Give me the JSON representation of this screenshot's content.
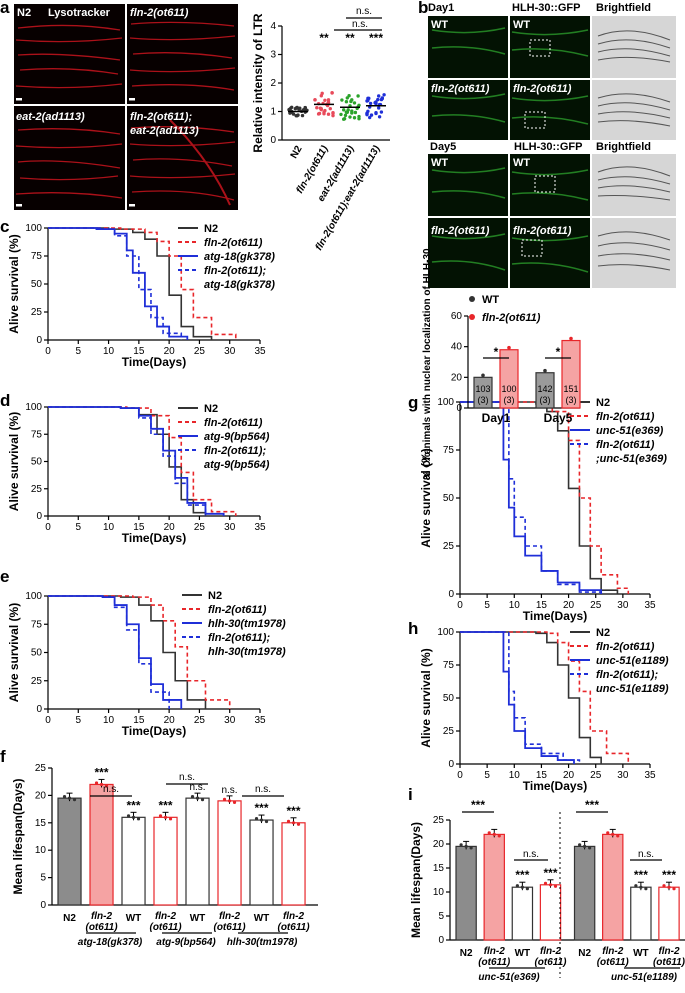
{
  "panel_letters": [
    "a",
    "b",
    "c",
    "d",
    "e",
    "f",
    "g",
    "h",
    "i"
  ],
  "colors": {
    "n2": "#333333",
    "fln2": "#e8262a",
    "mut": "#1f2fd8",
    "double": "#1f2fd8",
    "gray_bar": "#8c8c8c",
    "pink_bar": "#f5a3a3"
  },
  "panel_a": {
    "labels": [
      "N2",
      "Lysotracker",
      "fln-2(ot611)",
      "eat-2(ad1113)",
      "fln-2(ot611);",
      "eat-2(ad1113)"
    ]
  },
  "panel_b": {
    "day1": "Day1",
    "day5": "Day5",
    "col_gfp": "HLH-30::GFP",
    "col_bf": "Brightfield",
    "wt": "WT",
    "fln": "fln-2(ot611)"
  },
  "chart_data": [
    {
      "id": "a",
      "type": "scatter",
      "ylabel": "Relative intensity of LTR",
      "ylim": [
        0,
        4
      ],
      "yticks": [
        "0",
        "1",
        "2",
        "3",
        "4"
      ],
      "categories": [
        "N2",
        "fln-2(ot611)",
        "eat-2(ad1113)",
        "fln-2(ot611);eat-2(ad1113)"
      ],
      "means": [
        1.0,
        1.25,
        1.15,
        1.2
      ],
      "sig": [
        "",
        "**",
        "**",
        "***"
      ],
      "bracket": [
        "n.s.",
        "n.s."
      ]
    },
    {
      "id": "b_bar",
      "type": "bar",
      "ylabel": "% Of animals with nuclear localization of HLH-30",
      "ylim": [
        0,
        60
      ],
      "yticks": [
        "0",
        "20",
        "40",
        "60"
      ],
      "categories": [
        "Day1",
        "Day5"
      ],
      "legend": [
        "WT",
        "fln-2(ot611)"
      ],
      "series": [
        {
          "name": "WT",
          "values": [
            20,
            23
          ],
          "n": [
            "103\n(3)",
            "142\n(3)"
          ]
        },
        {
          "name": "fln-2(ot611)",
          "values": [
            38,
            44
          ],
          "n": [
            "100\n(3)",
            "151\n(3)"
          ]
        }
      ],
      "sig": [
        "*",
        "*"
      ]
    },
    {
      "id": "c",
      "type": "line",
      "xlabel": "Time(Days)",
      "ylabel": "Alive survival (%)",
      "xlim": [
        0,
        35
      ],
      "ylim": [
        0,
        100
      ],
      "legend": [
        "N2",
        "fln-2(ot611)",
        "atg-18(gk378)",
        "fln-2(ot611);",
        "atg-18(gk378)"
      ],
      "series": [
        {
          "name": "N2",
          "points": [
            [
              0,
              100
            ],
            [
              10,
              99
            ],
            [
              14,
              96
            ],
            [
              16,
              90
            ],
            [
              18,
              75
            ],
            [
              20,
              40
            ],
            [
              22,
              12
            ],
            [
              24,
              3
            ],
            [
              27,
              0
            ]
          ]
        },
        {
          "name": "fln-2(ot611)",
          "points": [
            [
              0,
              100
            ],
            [
              12,
              99
            ],
            [
              16,
              96
            ],
            [
              18,
              88
            ],
            [
              20,
              75
            ],
            [
              22,
              45
            ],
            [
              24,
              20
            ],
            [
              27,
              5
            ],
            [
              31,
              0
            ]
          ]
        },
        {
          "name": "atg-18(gk378)",
          "points": [
            [
              0,
              100
            ],
            [
              8,
              99
            ],
            [
              11,
              95
            ],
            [
              13,
              80
            ],
            [
              14,
              60
            ],
            [
              16,
              30
            ],
            [
              18,
              12
            ],
            [
              20,
              3
            ],
            [
              23,
              0
            ]
          ]
        },
        {
          "name": "fln-2(ot611); atg-18(gk378)",
          "points": [
            [
              0,
              100
            ],
            [
              9,
              99
            ],
            [
              11,
              93
            ],
            [
              13,
              75
            ],
            [
              15,
              45
            ],
            [
              17,
              20
            ],
            [
              19,
              6
            ],
            [
              22,
              0
            ]
          ]
        }
      ]
    },
    {
      "id": "d",
      "type": "line",
      "xlabel": "Time(Days)",
      "ylabel": "Alive survival (%)",
      "xlim": [
        0,
        35
      ],
      "ylim": [
        0,
        100
      ],
      "legend": [
        "N2",
        "fln-2(ot611)",
        "atg-9(bp564)",
        "fln-2(ot611);",
        "atg-9(bp564)"
      ],
      "series": [
        {
          "name": "N2",
          "points": [
            [
              0,
              100
            ],
            [
              12,
              99
            ],
            [
              15,
              93
            ],
            [
              18,
              75
            ],
            [
              20,
              45
            ],
            [
              22,
              15
            ],
            [
              24,
              3
            ],
            [
              26,
              0
            ]
          ]
        },
        {
          "name": "fln-2(ot611)",
          "points": [
            [
              0,
              100
            ],
            [
              13,
              99
            ],
            [
              17,
              92
            ],
            [
              20,
              72
            ],
            [
              22,
              40
            ],
            [
              24,
              15
            ],
            [
              27,
              4
            ],
            [
              31,
              0
            ]
          ]
        },
        {
          "name": "atg-9(bp564)",
          "points": [
            [
              0,
              100
            ],
            [
              12,
              99
            ],
            [
              15,
              92
            ],
            [
              17,
              80
            ],
            [
              19,
              60
            ],
            [
              21,
              35
            ],
            [
              23,
              12
            ],
            [
              26,
              2
            ],
            [
              29,
              0
            ]
          ]
        },
        {
          "name": "fln-2(ot611); atg-9(bp564)",
          "points": [
            [
              0,
              100
            ],
            [
              12,
              99
            ],
            [
              15,
              90
            ],
            [
              17,
              75
            ],
            [
              19,
              55
            ],
            [
              21,
              30
            ],
            [
              23,
              10
            ],
            [
              26,
              0
            ]
          ]
        }
      ]
    },
    {
      "id": "e",
      "type": "line",
      "xlabel": "Time(Days)",
      "ylabel": "Alive survival (%)",
      "xlim": [
        0,
        35
      ],
      "ylim": [
        0,
        100
      ],
      "legend": [
        "N2",
        "fln-2(ot611)",
        "hlh-30(tm1978)",
        "fln-2(ot611);",
        "hlh-30(tm1978)"
      ],
      "series": [
        {
          "name": "N2",
          "points": [
            [
              0,
              100
            ],
            [
              12,
              99
            ],
            [
              15,
              92
            ],
            [
              17,
              78
            ],
            [
              19,
              50
            ],
            [
              21,
              25
            ],
            [
              23,
              8
            ],
            [
              26,
              0
            ]
          ]
        },
        {
          "name": "fln-2(ot611)",
          "points": [
            [
              0,
              100
            ],
            [
              14,
              99
            ],
            [
              17,
              92
            ],
            [
              19,
              78
            ],
            [
              21,
              55
            ],
            [
              23,
              25
            ],
            [
              26,
              8
            ],
            [
              30,
              0
            ]
          ]
        },
        {
          "name": "hlh-30(tm1978)",
          "points": [
            [
              0,
              100
            ],
            [
              9,
              99
            ],
            [
              11,
              92
            ],
            [
              13,
              75
            ],
            [
              15,
              45
            ],
            [
              17,
              22
            ],
            [
              19,
              8
            ],
            [
              22,
              0
            ]
          ]
        },
        {
          "name": "fln-2(ot611); hlh-30(tm1978)",
          "points": [
            [
              0,
              100
            ],
            [
              9,
              99
            ],
            [
              11,
              90
            ],
            [
              13,
              70
            ],
            [
              15,
              40
            ],
            [
              17,
              15
            ],
            [
              20,
              0
            ]
          ]
        }
      ]
    },
    {
      "id": "f",
      "type": "bar",
      "ylabel": "Mean lifespan(Days)",
      "ylim": [
        0,
        25
      ],
      "yticks": [
        "0",
        "5",
        "10",
        "15",
        "20",
        "25"
      ],
      "categories": [
        "N2",
        "fln-2 (ot611)",
        "WT",
        "fln-2 (ot611)",
        "WT",
        "fln-2 (ot611)",
        "WT",
        "fln-2 (ot611)"
      ],
      "groups": [
        "atg-18(gk378)",
        "atg-9(bp564)",
        "hlh-30(tm1978)"
      ],
      "values": [
        19.5,
        22,
        16,
        16,
        19.5,
        19,
        15.5,
        15
      ],
      "sig": [
        "",
        "***",
        "***",
        "***",
        "n.s.",
        "n.s.",
        "***",
        "***"
      ],
      "brackets": [
        "n.s.",
        "n.s.",
        "n.s."
      ]
    },
    {
      "id": "g",
      "type": "line",
      "xlabel": "Time(Days)",
      "ylabel": "Alive survival (%)",
      "xlim": [
        0,
        35
      ],
      "ylim": [
        0,
        100
      ],
      "legend": [
        "N2",
        "fln-2(ot611)",
        "unc-51(e369)",
        "fln-2(ot611)",
        ";unc-51(e369)"
      ],
      "series": [
        {
          "name": "N2",
          "points": [
            [
              0,
              100
            ],
            [
              14,
              99
            ],
            [
              16,
              95
            ],
            [
              18,
              85
            ],
            [
              20,
              55
            ],
            [
              22,
              25
            ],
            [
              24,
              8
            ],
            [
              26,
              2
            ],
            [
              29,
              0
            ]
          ]
        },
        {
          "name": "fln-2(ot611)",
          "points": [
            [
              0,
              100
            ],
            [
              15,
              99
            ],
            [
              17,
              95
            ],
            [
              20,
              80
            ],
            [
              22,
              50
            ],
            [
              24,
              25
            ],
            [
              26,
              10
            ],
            [
              29,
              3
            ],
            [
              31,
              0
            ]
          ]
        },
        {
          "name": "unc-51(e369)",
          "points": [
            [
              0,
              100
            ],
            [
              7,
              100
            ],
            [
              8,
              70
            ],
            [
              9,
              45
            ],
            [
              10,
              30
            ],
            [
              12,
              20
            ],
            [
              15,
              12
            ],
            [
              18,
              6
            ],
            [
              22,
              2
            ],
            [
              26,
              0
            ]
          ]
        },
        {
          "name": "fln-2(ot611) ;unc-51(e369)",
          "points": [
            [
              0,
              100
            ],
            [
              8,
              100
            ],
            [
              9,
              60
            ],
            [
              10,
              40
            ],
            [
              12,
              25
            ],
            [
              15,
              12
            ],
            [
              18,
              5
            ],
            [
              22,
              1
            ],
            [
              26,
              0
            ]
          ]
        }
      ]
    },
    {
      "id": "h",
      "type": "line",
      "xlabel": "Time(Days)",
      "ylabel": "Alive survival (%)",
      "xlim": [
        0,
        35
      ],
      "ylim": [
        0,
        100
      ],
      "legend": [
        "N2",
        "fln-2(ot611)",
        "unc-51(e1189)",
        "fln-2(ot611);",
        "unc-51(e1189)"
      ],
      "series": [
        {
          "name": "N2",
          "points": [
            [
              0,
              100
            ],
            [
              14,
              99
            ],
            [
              16,
              92
            ],
            [
              18,
              75
            ],
            [
              20,
              50
            ],
            [
              22,
              20
            ],
            [
              24,
              5
            ],
            [
              26,
              0
            ]
          ]
        },
        {
          "name": "fln-2(ot611)",
          "points": [
            [
              0,
              100
            ],
            [
              16,
              99
            ],
            [
              18,
              92
            ],
            [
              20,
              78
            ],
            [
              22,
              55
            ],
            [
              24,
              25
            ],
            [
              27,
              8
            ],
            [
              31,
              0
            ]
          ]
        },
        {
          "name": "unc-51(e1189)",
          "points": [
            [
              0,
              100
            ],
            [
              7,
              100
            ],
            [
              8,
              70
            ],
            [
              9,
              45
            ],
            [
              10,
              25
            ],
            [
              12,
              12
            ],
            [
              15,
              6
            ],
            [
              18,
              3
            ],
            [
              21,
              0
            ]
          ]
        },
        {
          "name": "fln-2(ot611); unc-51(e1189)",
          "points": [
            [
              0,
              100
            ],
            [
              8,
              100
            ],
            [
              9,
              55
            ],
            [
              10,
              35
            ],
            [
              12,
              15
            ],
            [
              15,
              8
            ],
            [
              19,
              3
            ],
            [
              22,
              0
            ]
          ]
        }
      ]
    },
    {
      "id": "i",
      "type": "bar",
      "ylabel": "Mean lifespan(Days)",
      "ylim": [
        0,
        25
      ],
      "yticks": [
        "0",
        "5",
        "10",
        "15",
        "20",
        "25"
      ],
      "categories": [
        "N2",
        "fln-2 (ot611)",
        "WT",
        "fln-2 (ot611)",
        "N2",
        "fln-2 (ot611)",
        "WT",
        "fln-2 (ot611)"
      ],
      "groups": [
        "unc-51(e369)",
        "unc-51(e1189)"
      ],
      "values": [
        19.5,
        22,
        11,
        11.5,
        19.5,
        22,
        11,
        11
      ],
      "sig": [
        "",
        "",
        "***",
        "***",
        "",
        "",
        "***",
        "***"
      ],
      "brackets": [
        "***",
        "n.s.",
        "***",
        "n.s."
      ]
    }
  ]
}
